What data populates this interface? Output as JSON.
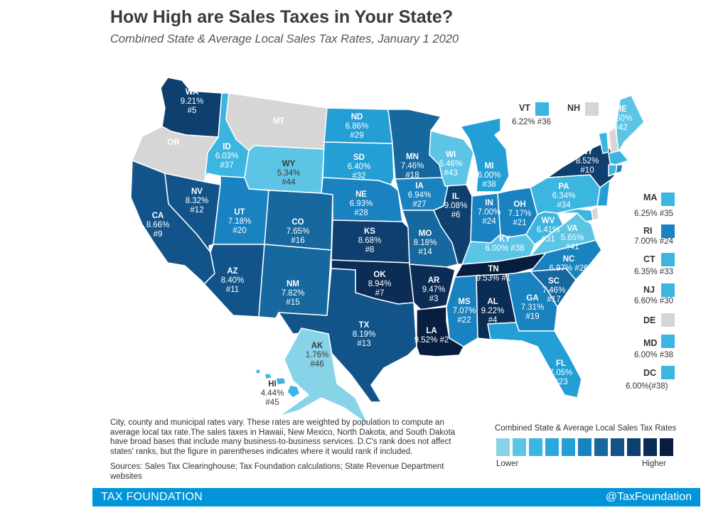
{
  "title": "How High are Sales Taxes in Your State?",
  "subtitle": "Combined State & Average Local Sales Tax Rates, January 1 2020",
  "colors": {
    "c1": "#87d3e8",
    "c2": "#5cc5e6",
    "c3": "#3cb6e0",
    "c4": "#239fd6",
    "c5": "#1982c0",
    "c6": "#16689f",
    "c7": "#12548a",
    "c8": "#0e3f6e",
    "c9": "#0b2c55",
    "c10": "#081e40",
    "none": "#d6d6d6"
  },
  "states": {
    "WA": {
      "abbr": "WA",
      "rate": "9.21%",
      "rank": "#5"
    },
    "OR": {
      "abbr": "OR"
    },
    "CA": {
      "abbr": "CA",
      "rate": "8.66%",
      "rank": "#9"
    },
    "NV": {
      "abbr": "NV",
      "rate": "8.32%",
      "rank": "#12"
    },
    "ID": {
      "abbr": "ID",
      "rate": "6.03%",
      "rank": "#37"
    },
    "MT": {
      "abbr": "MT"
    },
    "WY": {
      "abbr": "WY",
      "rate": "5.34%",
      "rank": "#44"
    },
    "UT": {
      "abbr": "UT",
      "rate": "7.18%",
      "rank": "#20"
    },
    "AZ": {
      "abbr": "AZ",
      "rate": "8.40%",
      "rank": "#11"
    },
    "CO": {
      "abbr": "CO",
      "rate": "7.65%",
      "rank": "#16"
    },
    "NM": {
      "abbr": "NM",
      "rate": "7.82%",
      "rank": "#15"
    },
    "ND": {
      "abbr": "ND",
      "rate": "6.86%",
      "rank": "#29"
    },
    "SD": {
      "abbr": "SD",
      "rate": "6.40%",
      "rank": "#32"
    },
    "NE": {
      "abbr": "NE",
      "rate": "6.93%",
      "rank": "#28"
    },
    "KS": {
      "abbr": "KS",
      "rate": "8.68%",
      "rank": "#8"
    },
    "OK": {
      "abbr": "OK",
      "rate": "8.94%",
      "rank": "#7"
    },
    "TX": {
      "abbr": "TX",
      "rate": "8.19%",
      "rank": "#13"
    },
    "MN": {
      "abbr": "MN",
      "rate": "7.46%",
      "rank": "#18"
    },
    "IA": {
      "abbr": "IA",
      "rate": "6.94%",
      "rank": "#27"
    },
    "MO": {
      "abbr": "MO",
      "rate": "8.18%",
      "rank": "#14"
    },
    "AR": {
      "abbr": "AR",
      "rate": "9.47%",
      "rank": "#3"
    },
    "LA": {
      "abbr": "LA",
      "line2": "9.52% #2"
    },
    "WI": {
      "abbr": "WI",
      "rate": "5.46%",
      "rank": "#43"
    },
    "IL": {
      "abbr": "IL",
      "rate": "9.08%",
      "rank": "#6"
    },
    "MI": {
      "abbr": "MI",
      "rate": "6.00%",
      "rank": "#38"
    },
    "IN": {
      "abbr": "IN",
      "rate": "7.00%",
      "rank": "#24"
    },
    "OH": {
      "abbr": "OH",
      "rate": "7.17%",
      "rank": "#21"
    },
    "KY": {
      "abbr": "KY",
      "line2": "6.00% #38"
    },
    "TN": {
      "abbr": "TN",
      "line2": "9.53% #1"
    },
    "MS": {
      "abbr": "MS",
      "rate": "7.07%",
      "rank": "#22"
    },
    "AL": {
      "abbr": "AL",
      "rate": "9.22%",
      "rank": "#4"
    },
    "GA": {
      "abbr": "GA",
      "rate": "7.31%",
      "rank": "#19"
    },
    "FL": {
      "abbr": "FL",
      "rate": "7.05%",
      "rank": "#23"
    },
    "SC": {
      "abbr": "SC",
      "rate": "7.46%",
      "rank": "#17"
    },
    "NC": {
      "abbr": "NC",
      "line2": "6.97% #26"
    },
    "VA": {
      "abbr": "VA",
      "rate": "5.65%",
      "rank": "#41"
    },
    "WV": {
      "abbr": "WV",
      "rate": "6.41%",
      "rank": "#31"
    },
    "PA": {
      "abbr": "PA",
      "rate": "6.34%",
      "rank": "#34"
    },
    "NY": {
      "abbr": "NY",
      "rate": "8.52%",
      "rank": "#10"
    },
    "ME": {
      "abbr": "ME",
      "rate": "5.50%",
      "rank": "#42"
    },
    "AK": {
      "abbr": "AK",
      "rate": "1.76%",
      "rank": "#46"
    },
    "HI": {
      "abbr": "HI",
      "rate": "4.44%",
      "rank": "#45"
    }
  },
  "callouts": {
    "VT": {
      "abbr": "VT",
      "rate": "6.22% #36"
    },
    "NH": {
      "abbr": "NH"
    },
    "MA": {
      "abbr": "MA",
      "rate": "6.25% #35"
    },
    "RI": {
      "abbr": "RI",
      "rate": "7.00% #24"
    },
    "CT": {
      "abbr": "CT",
      "rate": "6.35% #33"
    },
    "NJ": {
      "abbr": "NJ",
      "rate": "6.60% #30"
    },
    "DE": {
      "abbr": "DE"
    },
    "MD": {
      "abbr": "MD",
      "rate": "6.00% #38"
    },
    "DC": {
      "abbr": "DC",
      "rate": "6.00%(#38)"
    }
  },
  "note": "City, county and municipal rates vary. These rates are weighted by population to compute an average local tax rate.The sales taxes in Hawaii, New Mexico, North Dakota, and South Dakota have broad bases that include many business-to-business services. D.C's rank does not affect states' ranks, but the figure in parentheses indicates where it would rank if included.",
  "sources": "Sources: Sales Tax Clearinghouse; Tax Foundation calculations; State Revenue Department websites",
  "legend": {
    "title": "Combined State & Average Local Sales Tax Rates",
    "low": "Lower",
    "high": "Higher",
    "colors": [
      "#87d3e8",
      "#5cc5e6",
      "#3cb6e0",
      "#2aa8dc",
      "#239fd6",
      "#1982c0",
      "#16689f",
      "#12548a",
      "#0e3f6e",
      "#0b2c55",
      "#081e40"
    ]
  },
  "footer": {
    "left": "TAX FOUNDATION",
    "right": "@TaxFoundation"
  }
}
